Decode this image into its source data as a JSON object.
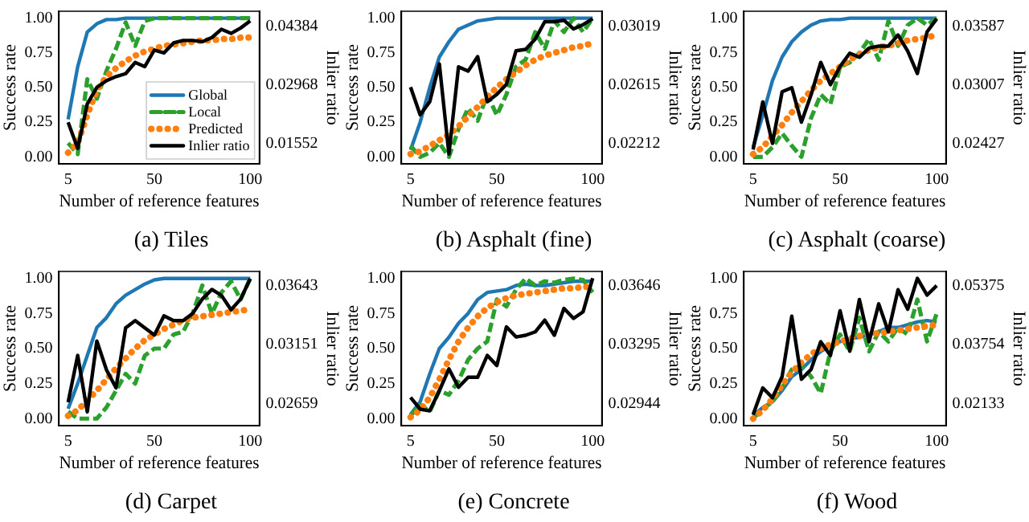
{
  "chart_data": [
    {
      "type": "line",
      "title": "(a) Tiles",
      "xlabel": "Number of reference features",
      "ylabel": "Success rate",
      "y2label": "Inlier ratio",
      "legend": "bottom right",
      "x": [
        5,
        10,
        15,
        20,
        25,
        30,
        35,
        40,
        45,
        50,
        55,
        60,
        65,
        70,
        75,
        80,
        85,
        90,
        95,
        100
      ],
      "xlim": [
        0.25,
        104.75
      ],
      "xticks": [
        5,
        50,
        100
      ],
      "ylim": [
        -0.05,
        1.05
      ],
      "yticks": [
        {
          "value": 0,
          "label": "0.00"
        },
        {
          "value": 0.25,
          "label": "0.25"
        },
        {
          "value": 0.5,
          "label": "0.50"
        },
        {
          "value": 0.75,
          "label": "0.75"
        },
        {
          "value": 1,
          "label": "1.00"
        }
      ],
      "y2lim": [
        0.01068,
        0.04744
      ],
      "y2ticks": [
        0.01552,
        0.02968,
        0.04384
      ],
      "series": [
        {
          "name": "Global",
          "color": "#1f77b4",
          "line_style": "solid",
          "values": [
            0.27,
            0.65,
            0.9,
            0.96,
            0.99,
            0.99,
            1,
            1,
            1,
            1,
            1,
            1,
            1,
            1,
            1,
            1,
            1,
            1,
            1,
            1
          ]
        },
        {
          "name": "Local",
          "color": "#2ca02c",
          "line_style": "dashed",
          "values": [
            0.1,
            0.02,
            0.56,
            0.42,
            0.62,
            0.78,
            0.97,
            0.8,
            0.98,
            1,
            1,
            1,
            1,
            1,
            1,
            1,
            1,
            1,
            1,
            1
          ]
        },
        {
          "name": "Predicted",
          "color": "#ff7f0e",
          "line_style": "dotted",
          "values": [
            0.03,
            0.1,
            0.3,
            0.48,
            0.58,
            0.64,
            0.69,
            0.73,
            0.76,
            0.78,
            0.8,
            0.81,
            0.82,
            0.83,
            0.84,
            0.84,
            0.85,
            0.85,
            0.86,
            0.86
          ]
        },
        {
          "name": "Inlier ratio",
          "color": "#000000",
          "line_style": "solid",
          "axis": "y2",
          "values": [
            0.0207,
            0.0144,
            0.0251,
            0.0291,
            0.0307,
            0.0317,
            0.0324,
            0.0351,
            0.0341,
            0.0381,
            0.0374,
            0.0398,
            0.0404,
            0.0404,
            0.0401,
            0.0411,
            0.0431,
            0.0421,
            0.0434,
            0.0451
          ]
        }
      ]
    },
    {
      "type": "line",
      "title": "(b) Asphalt (fine)",
      "xlabel": "Number of reference features",
      "ylabel": "Success rate",
      "y2label": "Inlier ratio",
      "x": [
        5,
        10,
        15,
        20,
        25,
        30,
        35,
        40,
        45,
        50,
        55,
        60,
        65,
        70,
        75,
        80,
        85,
        90,
        95,
        100
      ],
      "xlim": [
        0.25,
        104.75
      ],
      "xticks": [
        5,
        50,
        100
      ],
      "ylim": [
        -0.05,
        1.05
      ],
      "yticks": [
        {
          "value": 0,
          "label": "0.00"
        },
        {
          "value": 0.25,
          "label": "0.25"
        },
        {
          "value": 0.5,
          "label": "0.50"
        },
        {
          "value": 0.75,
          "label": "0.75"
        },
        {
          "value": 1,
          "label": "1.00"
        }
      ],
      "y2lim": [
        0.02073,
        0.03122
      ],
      "y2ticks": [
        0.02212,
        0.02615,
        0.03019
      ],
      "series": [
        {
          "color": "#1f77b4",
          "line_style": "solid",
          "values": [
            0.05,
            0.25,
            0.5,
            0.72,
            0.83,
            0.92,
            0.95,
            0.98,
            0.99,
            1,
            1,
            1,
            1,
            1,
            1,
            1,
            1,
            1,
            1,
            1
          ]
        },
        {
          "color": "#2ca02c",
          "line_style": "dashed",
          "values": [
            0.08,
            0,
            0.03,
            0.1,
            0,
            0.2,
            0.35,
            0.26,
            0.45,
            0.3,
            0.45,
            0.65,
            0.7,
            0.9,
            0.78,
            0.98,
            0.9,
            1,
            0.9,
            1
          ]
        },
        {
          "color": "#ff7f0e",
          "line_style": "dotted",
          "values": [
            0.02,
            0.04,
            0.08,
            0.12,
            0.16,
            0.22,
            0.29,
            0.36,
            0.43,
            0.5,
            0.56,
            0.61,
            0.66,
            0.7,
            0.73,
            0.75,
            0.77,
            0.79,
            0.8,
            0.82
          ]
        },
        {
          "color": "#000000",
          "line_style": "solid",
          "axis": "y2",
          "values": [
            0.026,
            0.0241,
            0.025,
            0.0276,
            0.0214,
            0.0274,
            0.0271,
            0.0281,
            0.025,
            0.0255,
            0.0262,
            0.0285,
            0.0286,
            0.0293,
            0.0305,
            0.0305,
            0.0306,
            0.03,
            0.0303,
            0.0307
          ]
        }
      ]
    },
    {
      "type": "line",
      "title": "(c) Asphalt (coarse)",
      "xlabel": "Number of reference features",
      "ylabel": "Success rate",
      "y2label": "Inlier ratio",
      "x": [
        5,
        10,
        15,
        20,
        25,
        30,
        35,
        40,
        45,
        50,
        55,
        60,
        65,
        70,
        75,
        80,
        85,
        90,
        95,
        100
      ],
      "xlim": [
        0.25,
        104.75
      ],
      "xticks": [
        5,
        50,
        100
      ],
      "ylim": [
        -0.05,
        1.05
      ],
      "yticks": [
        {
          "value": 0,
          "label": "0.00"
        },
        {
          "value": 0.25,
          "label": "0.25"
        },
        {
          "value": 0.5,
          "label": "0.50"
        },
        {
          "value": 0.75,
          "label": "0.75"
        },
        {
          "value": 1,
          "label": "1.00"
        }
      ],
      "y2lim": [
        0.02229,
        0.03734
      ],
      "y2ticks": [
        0.02427,
        0.03007,
        0.03587
      ],
      "series": [
        {
          "color": "#1f77b4",
          "line_style": "solid",
          "values": [
            0.07,
            0.3,
            0.55,
            0.72,
            0.83,
            0.9,
            0.95,
            0.98,
            0.99,
            0.99,
            1,
            1,
            1,
            1,
            1,
            1,
            1,
            1,
            1,
            1
          ]
        },
        {
          "color": "#2ca02c",
          "line_style": "dashed",
          "values": [
            0,
            0,
            0.07,
            0.17,
            0.08,
            0,
            0.28,
            0.45,
            0.38,
            0.65,
            0.68,
            0.75,
            0.85,
            0.7,
            0.98,
            0.8,
            0.95,
            1,
            0.95,
            1
          ]
        },
        {
          "color": "#ff7f0e",
          "line_style": "dotted",
          "values": [
            0.02,
            0.07,
            0.15,
            0.23,
            0.32,
            0.4,
            0.48,
            0.55,
            0.6,
            0.65,
            0.7,
            0.74,
            0.77,
            0.79,
            0.8,
            0.82,
            0.84,
            0.85,
            0.86,
            0.88
          ]
        },
        {
          "color": "#000000",
          "line_style": "solid",
          "axis": "y2",
          "values": [
            0.0237,
            0.0284,
            0.0243,
            0.0294,
            0.0298,
            0.0264,
            0.0291,
            0.0323,
            0.0301,
            0.0319,
            0.0332,
            0.0328,
            0.0337,
            0.0339,
            0.0339,
            0.035,
            0.0334,
            0.0312,
            0.0353,
            0.0366
          ]
        }
      ]
    },
    {
      "type": "line",
      "title": "(d) Carpet",
      "xlabel": "Number of reference features",
      "ylabel": "Success rate",
      "y2label": "Inlier ratio",
      "x": [
        5,
        10,
        15,
        20,
        25,
        30,
        35,
        40,
        45,
        50,
        55,
        60,
        65,
        70,
        75,
        80,
        85,
        90,
        95,
        100
      ],
      "xlim": [
        0.25,
        104.75
      ],
      "xticks": [
        5,
        50,
        100
      ],
      "ylim": [
        -0.05,
        1.05
      ],
      "yticks": [
        {
          "value": 0,
          "label": "0.00"
        },
        {
          "value": 0.25,
          "label": "0.25"
        },
        {
          "value": 0.5,
          "label": "0.50"
        },
        {
          "value": 0.75,
          "label": "0.75"
        },
        {
          "value": 1,
          "label": "1.00"
        }
      ],
      "y2lim": [
        0.02475,
        0.0376
      ],
      "y2ticks": [
        0.02659,
        0.03151,
        0.03643
      ],
      "series": [
        {
          "color": "#1f77b4",
          "line_style": "solid",
          "values": [
            0.07,
            0.25,
            0.45,
            0.65,
            0.72,
            0.82,
            0.88,
            0.92,
            0.96,
            0.99,
            1,
            1,
            1,
            1,
            1,
            1,
            1,
            1,
            1,
            1
          ]
        },
        {
          "color": "#2ca02c",
          "line_style": "dashed",
          "values": [
            0.05,
            0,
            0,
            0,
            0.08,
            0.2,
            0.32,
            0.25,
            0.45,
            0.5,
            0.5,
            0.6,
            0.62,
            0.75,
            0.95,
            0.75,
            0.9,
            0.98,
            0.85,
            1
          ]
        },
        {
          "color": "#ff7f0e",
          "line_style": "dotted",
          "values": [
            0.02,
            0.06,
            0.13,
            0.2,
            0.28,
            0.36,
            0.43,
            0.5,
            0.56,
            0.6,
            0.64,
            0.67,
            0.7,
            0.72,
            0.73,
            0.74,
            0.75,
            0.76,
            0.77,
            0.78
          ]
        },
        {
          "color": "#000000",
          "line_style": "solid",
          "axis": "y2",
          "values": [
            0.0267,
            0.0306,
            0.0259,
            0.0318,
            0.0294,
            0.0279,
            0.0329,
            0.0335,
            0.0329,
            0.0323,
            0.0339,
            0.0335,
            0.0335,
            0.0341,
            0.0353,
            0.0361,
            0.0356,
            0.0344,
            0.0353,
            0.037
          ]
        }
      ]
    },
    {
      "type": "line",
      "title": "(e) Concrete",
      "xlabel": "Number of reference features",
      "ylabel": "Success rate",
      "y2label": "Inlier ratio",
      "x": [
        5,
        10,
        15,
        20,
        25,
        30,
        35,
        40,
        45,
        50,
        55,
        60,
        65,
        70,
        75,
        80,
        85,
        90,
        95,
        100
      ],
      "xlim": [
        0.25,
        104.75
      ],
      "xticks": [
        5,
        50,
        100
      ],
      "ylim": [
        -0.05,
        1.05
      ],
      "yticks": [
        {
          "value": 0,
          "label": "0.00"
        },
        {
          "value": 0.25,
          "label": "0.25"
        },
        {
          "value": 0.5,
          "label": "0.50"
        },
        {
          "value": 0.75,
          "label": "0.75"
        },
        {
          "value": 1,
          "label": "1.00"
        }
      ],
      "y2lim": [
        0.02812,
        0.0373
      ],
      "y2ticks": [
        0.02944,
        0.03295,
        0.03646
      ],
      "series": [
        {
          "color": "#1f77b4",
          "line_style": "solid",
          "values": [
            0.03,
            0.12,
            0.32,
            0.5,
            0.58,
            0.68,
            0.75,
            0.85,
            0.9,
            0.91,
            0.92,
            0.95,
            0.96,
            0.95,
            0.95,
            0.96,
            0.97,
            0.98,
            0.98,
            0.98
          ]
        },
        {
          "color": "#2ca02c",
          "line_style": "dashed",
          "values": [
            0.02,
            0.1,
            0.05,
            0.2,
            0.17,
            0.27,
            0.42,
            0.5,
            0.55,
            0.85,
            0.8,
            0.92,
            1,
            0.95,
            0.98,
            0.97,
            0.99,
            1,
            0.99,
            0.9
          ]
        },
        {
          "color": "#ff7f0e",
          "line_style": "dotted",
          "values": [
            0.01,
            0.06,
            0.15,
            0.28,
            0.42,
            0.55,
            0.65,
            0.73,
            0.79,
            0.83,
            0.86,
            0.88,
            0.89,
            0.9,
            0.91,
            0.92,
            0.93,
            0.93,
            0.94,
            0.94
          ]
        },
        {
          "color": "#000000",
          "line_style": "solid",
          "axis": "y2",
          "values": [
            0.0298,
            0.0291,
            0.029,
            0.0302,
            0.0315,
            0.0304,
            0.031,
            0.031,
            0.0323,
            0.0317,
            0.034,
            0.0334,
            0.0335,
            0.0337,
            0.0344,
            0.0335,
            0.0351,
            0.0345,
            0.0349,
            0.0369
          ]
        }
      ]
    },
    {
      "type": "line",
      "title": "(f) Wood",
      "xlabel": "Number of reference features",
      "ylabel": "Success rate",
      "y2label": "Inlier ratio",
      "x": [
        5,
        10,
        15,
        20,
        25,
        30,
        35,
        40,
        45,
        50,
        55,
        60,
        65,
        70,
        75,
        80,
        85,
        90,
        95,
        100
      ],
      "xlim": [
        0.25,
        104.75
      ],
      "xticks": [
        5,
        50,
        100
      ],
      "ylim": [
        -0.05,
        1.05
      ],
      "yticks": [
        {
          "value": 0,
          "label": "0.00"
        },
        {
          "value": 0.25,
          "label": "0.25"
        },
        {
          "value": 0.5,
          "label": "0.50"
        },
        {
          "value": 0.75,
          "label": "0.75"
        },
        {
          "value": 1,
          "label": "1.00"
        }
      ],
      "y2lim": [
        0.01525,
        0.0576
      ],
      "y2ticks": [
        0.02133,
        0.03754,
        0.05375
      ],
      "series": [
        {
          "color": "#1f77b4",
          "line_style": "solid",
          "values": [
            0.02,
            0.08,
            0.12,
            0.2,
            0.3,
            0.35,
            0.42,
            0.48,
            0.52,
            0.55,
            0.57,
            0.58,
            0.6,
            0.62,
            0.65,
            0.65,
            0.67,
            0.69,
            0.7,
            0.69
          ]
        },
        {
          "color": "#2ca02c",
          "line_style": "dashed",
          "values": [
            0,
            0.07,
            0.12,
            0.22,
            0.35,
            0.38,
            0.3,
            0.18,
            0.48,
            0.6,
            0.48,
            0.72,
            0.48,
            0.62,
            0.55,
            0.65,
            0.6,
            0.85,
            0.55,
            0.75
          ]
        },
        {
          "color": "#ff7f0e",
          "line_style": "dotted",
          "values": [
            0,
            0.06,
            0.14,
            0.24,
            0.33,
            0.4,
            0.46,
            0.5,
            0.53,
            0.55,
            0.57,
            0.59,
            0.6,
            0.61,
            0.62,
            0.63,
            0.64,
            0.65,
            0.66,
            0.67
          ]
        },
        {
          "color": "#000000",
          "line_style": "solid",
          "axis": "y2",
          "values": [
            0.0183,
            0.0256,
            0.0229,
            0.0287,
            0.0453,
            0.028,
            0.0307,
            0.0383,
            0.0345,
            0.0468,
            0.0357,
            0.0499,
            0.0383,
            0.0487,
            0.041,
            0.0526,
            0.0472,
            0.0557,
            0.0511,
            0.0537
          ]
        }
      ]
    }
  ]
}
